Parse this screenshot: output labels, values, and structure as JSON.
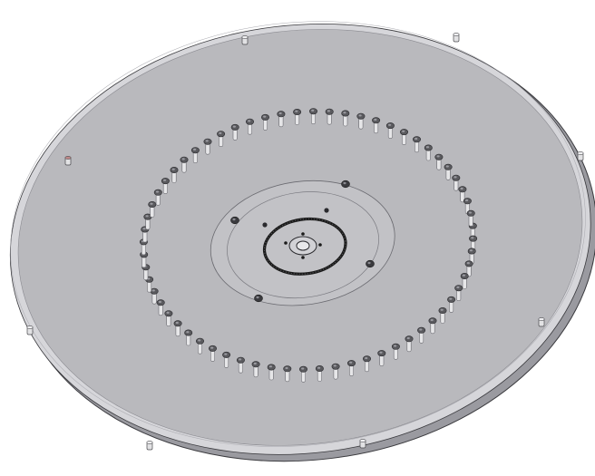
{
  "scene": {
    "subject": "circular-plate-assembly",
    "colors": {
      "background": "#ffffff",
      "plate_face": "#b9b9bd",
      "plate_edge": "#9a9aa0",
      "rim": "#d6d6da",
      "outline": "#3a3a3e",
      "pin": "#e6e6e8",
      "pin_shadow": "#5a5a5e",
      "seal_ring": "#1a1a1a",
      "bolt_accent": "#c08888"
    },
    "counts": {
      "pins_in_ring": 64,
      "rim_bolts": 8,
      "hub_bolts": 4
    }
  }
}
